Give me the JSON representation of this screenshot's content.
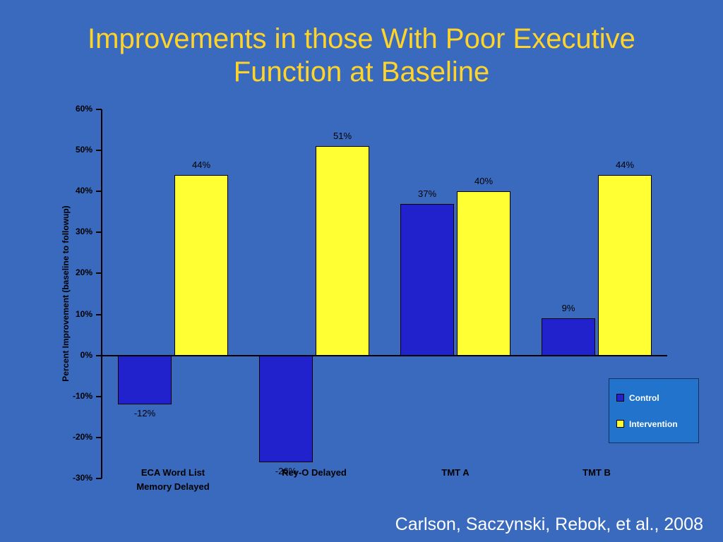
{
  "slide": {
    "title": "Improvements in those With Poor Executive\nFunction at Baseline",
    "citation": "Carlson, Saczynski, Rebok, et al., 2008",
    "colors": {
      "background": "#3A6ABE",
      "title_text": "#FFD42A",
      "citation_text": "#FFFFFF",
      "legend_background": "#2173CB",
      "axis": "#000000"
    }
  },
  "chart_data": {
    "type": "bar",
    "title": "",
    "xlabel": "",
    "ylabel": "Percent Improvement (baseline to followup)",
    "ylim": [
      -30,
      60
    ],
    "ytick_step": 10,
    "grid": false,
    "legend_position": "bottom-right",
    "categories": [
      "ECA Word List\nMemory Delayed",
      "Rey-O Delayed",
      "TMT A",
      "TMT B"
    ],
    "series": [
      {
        "name": "Control",
        "color": "#2222CC",
        "values": [
          -12,
          -26,
          37,
          9
        ],
        "labels": [
          "-12%",
          "-26%",
          "37%",
          "9%"
        ]
      },
      {
        "name": "Intervention",
        "color": "#FFFF33",
        "values": [
          44,
          51,
          40,
          44
        ],
        "labels": [
          "44%",
          "51%",
          "40%",
          "44%"
        ]
      }
    ],
    "yticks": [
      {
        "label": "60%",
        "value": 60
      },
      {
        "label": "50%",
        "value": 50
      },
      {
        "label": "40%",
        "value": 40
      },
      {
        "label": "30%",
        "value": 30
      },
      {
        "label": "20%",
        "value": 20
      },
      {
        "label": "10%",
        "value": 10
      },
      {
        "label": "0%",
        "value": 0
      },
      {
        "label": "-10%",
        "value": -10
      },
      {
        "label": "-20%",
        "value": -20
      },
      {
        "label": "-30%",
        "value": -30
      }
    ]
  }
}
